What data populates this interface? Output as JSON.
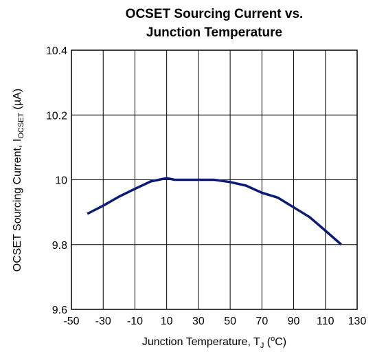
{
  "chart_data": {
    "type": "line",
    "title": [
      "OCSET Sourcing Current vs.",
      "Junction Temperature"
    ],
    "xlabel": [
      "Junction Temperature, T",
      "J",
      " (",
      "o",
      "C)"
    ],
    "ylabel": [
      "OCSET Sourcing Current, I",
      "OCSET",
      " (µA)"
    ],
    "x": [
      -40,
      -30,
      -20,
      -10,
      0,
      5,
      10,
      15,
      20,
      30,
      40,
      50,
      60,
      70,
      80,
      85,
      90,
      100,
      110,
      120
    ],
    "series": [
      {
        "name": "OCSET Sourcing Current",
        "color": "#0b1c78",
        "values": [
          9.895,
          9.92,
          9.948,
          9.972,
          9.995,
          10.0,
          10.005,
          10.0,
          10.0,
          10.0,
          10.0,
          9.993,
          9.982,
          9.96,
          9.945,
          9.93,
          9.915,
          9.885,
          9.843,
          9.8
        ]
      }
    ],
    "xlim": [
      -50,
      130
    ],
    "xticks": [
      -50,
      -30,
      -10,
      10,
      30,
      50,
      70,
      90,
      110,
      130
    ],
    "ylim": [
      9.6,
      10.4
    ],
    "yticks": [
      9.6,
      9.8,
      10,
      10.2,
      10.4
    ],
    "grid": true
  }
}
